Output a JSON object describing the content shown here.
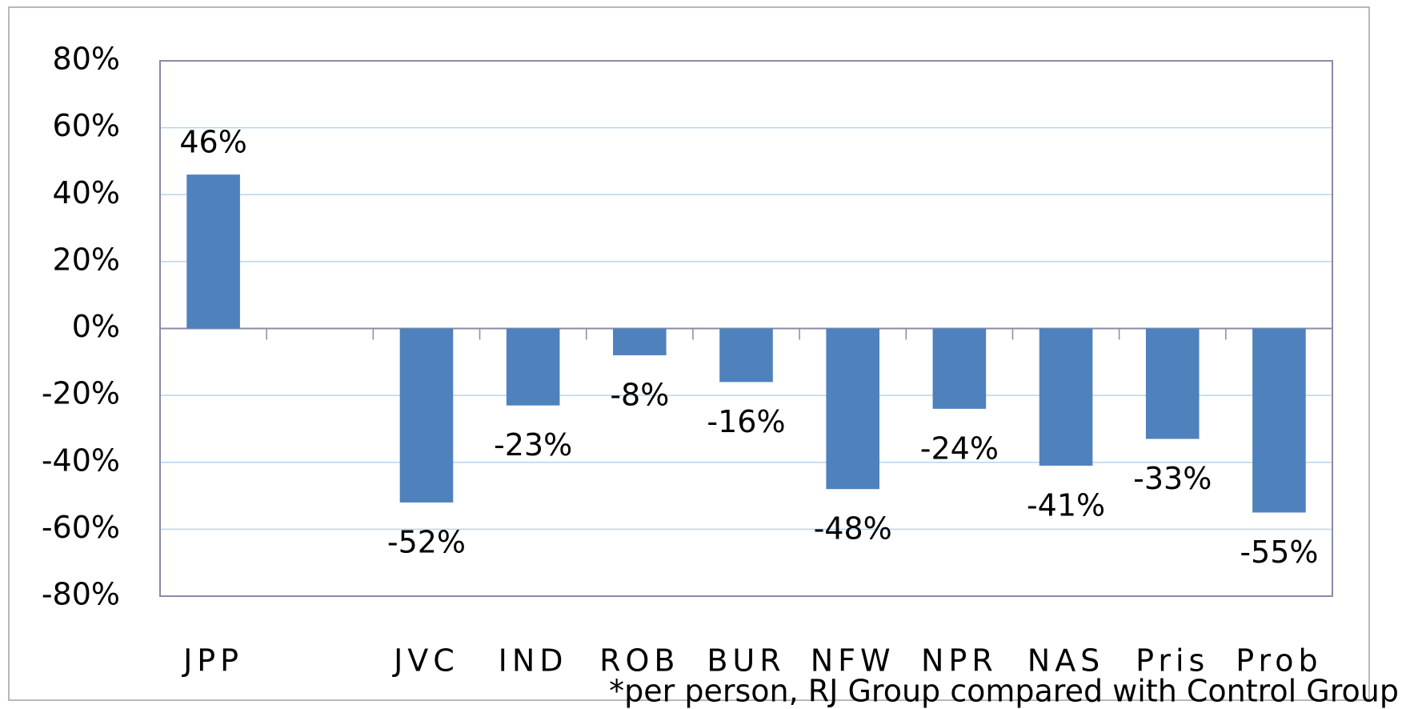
{
  "chart_data": {
    "type": "bar",
    "categories": [
      "JPP",
      null,
      "JVC",
      "IND",
      "ROB",
      "BUR",
      "NFW",
      "NPR",
      "NAS",
      "Pris",
      "Prob"
    ],
    "values": [
      46,
      null,
      -52,
      -23,
      -8,
      -16,
      -48,
      -24,
      -41,
      -33,
      -55
    ],
    "value_labels": [
      "46%",
      null,
      "-52%",
      "-23%",
      "-8%",
      "-16%",
      "-48%",
      "-24%",
      "-41%",
      "-33%",
      "-55%"
    ],
    "color": "#4f81bd",
    "ylim": [
      -80,
      80
    ],
    "yticks": [
      {
        "value": -80,
        "label": "-80%"
      },
      {
        "value": -60,
        "label": "-60%"
      },
      {
        "value": -40,
        "label": "-40%"
      },
      {
        "value": -20,
        "label": "-20%"
      },
      {
        "value": 0,
        "label": "0%"
      },
      {
        "value": 20,
        "label": "20%"
      },
      {
        "value": 40,
        "label": "40%"
      },
      {
        "value": 60,
        "label": "60%"
      },
      {
        "value": 80,
        "label": "80%"
      }
    ],
    "grid": true,
    "annotation": "*per person, RJ Group compared with Control Group"
  }
}
